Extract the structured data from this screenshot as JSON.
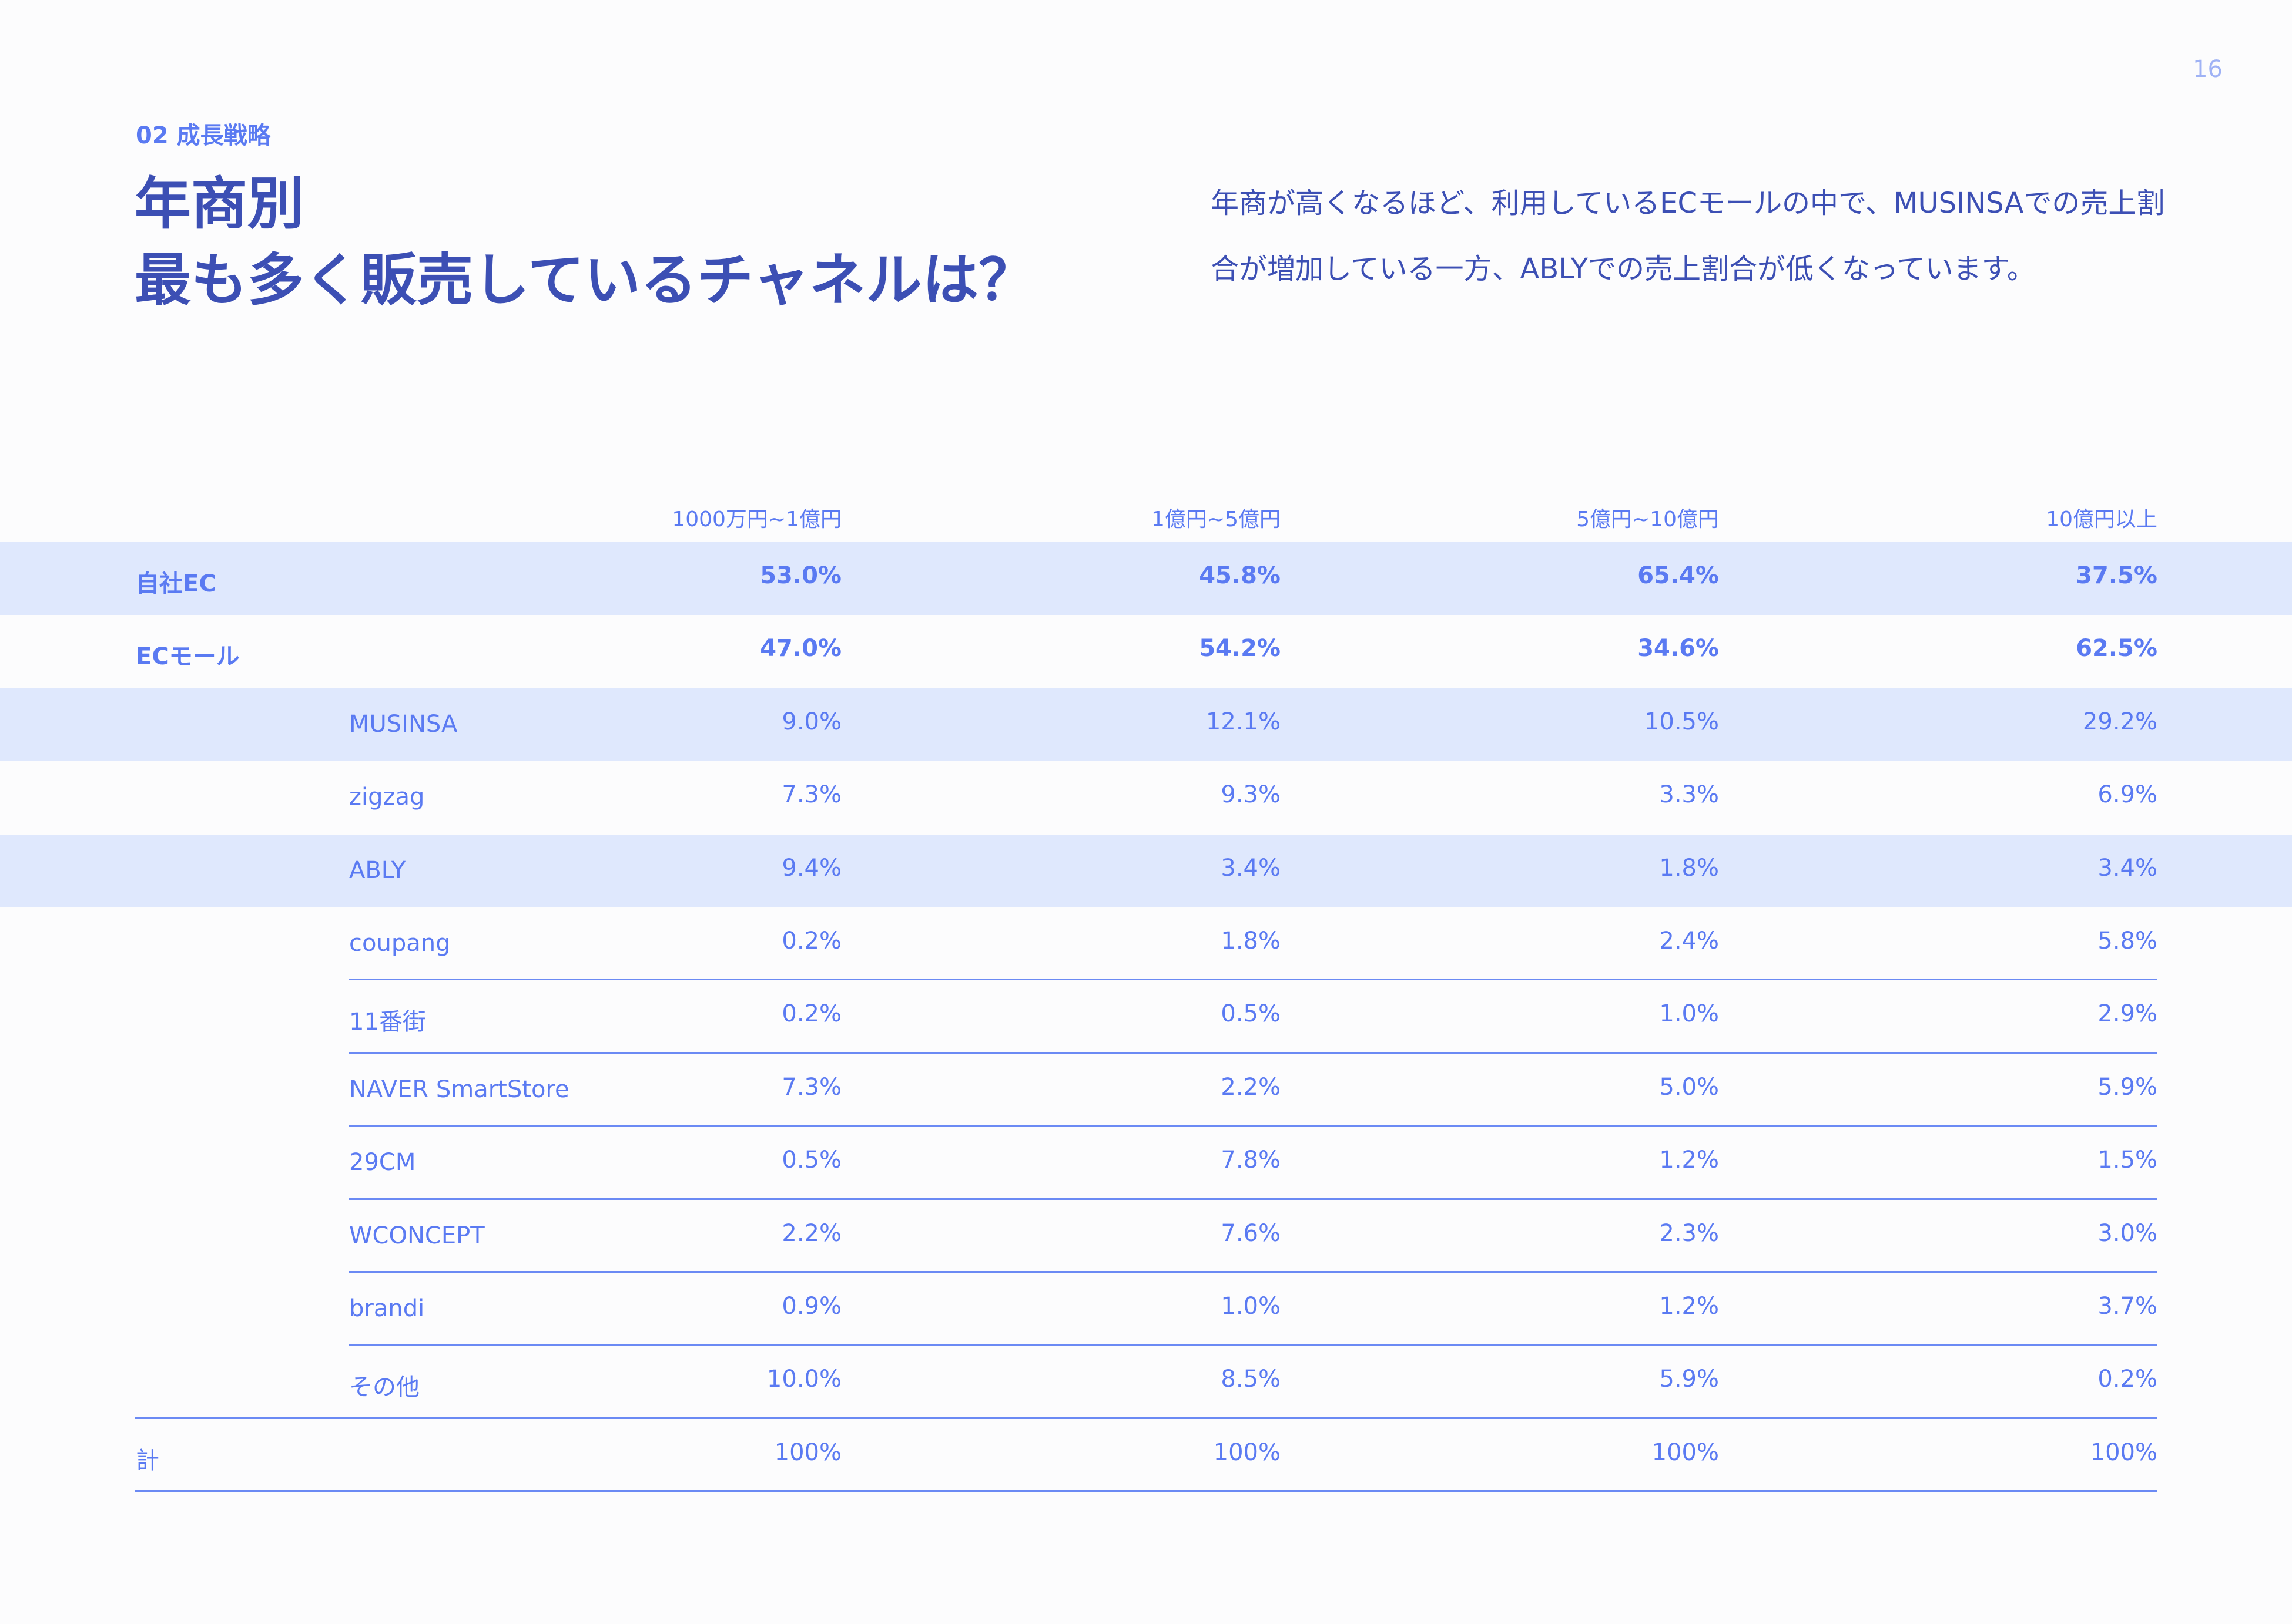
{
  "page_number": "16",
  "section": "02  成長戦略",
  "title": [
    "年商別",
    "最も多く販売しているチャネルは？"
  ],
  "lead": [
    "年商が高くなるほど、利用しているECモールの中で、MUSINSAでの売上割",
    "合が増加している一方、ABLYでの売上割合が低くなっています。"
  ],
  "table": {
    "columns": [
      "1000万円~1億円",
      "1億円~5億円",
      "5億円~10億円",
      "10億円以上"
    ],
    "rows": [
      {
        "label": "自社EC",
        "values": [
          "53.0%",
          "45.8%",
          "65.4%",
          "37.5%"
        ]
      },
      {
        "label": "ECモール",
        "values": [
          "47.0%",
          "54.2%",
          "34.6%",
          "62.5%"
        ]
      },
      {
        "label": "MUSINSA",
        "values": [
          "9.0%",
          "12.1%",
          "10.5%",
          "29.2%"
        ]
      },
      {
        "label": "zigzag",
        "values": [
          "7.3%",
          "9.3%",
          "3.3%",
          "6.9%"
        ]
      },
      {
        "label": "ABLY",
        "values": [
          "9.4%",
          "3.4%",
          "1.8%",
          "3.4%"
        ]
      },
      {
        "label": "coupang",
        "values": [
          "0.2%",
          "1.8%",
          "2.4%",
          "5.8%"
        ]
      },
      {
        "label": "11番街",
        "values": [
          "0.2%",
          "0.5%",
          "1.0%",
          "2.9%"
        ]
      },
      {
        "label": "NAVER SmartStore",
        "values": [
          "7.3%",
          "2.2%",
          "5.0%",
          "5.9%"
        ]
      },
      {
        "label": "29CM",
        "values": [
          "0.5%",
          "7.8%",
          "1.2%",
          "1.5%"
        ]
      },
      {
        "label": "WCONCEPT",
        "values": [
          "2.2%",
          "7.6%",
          "2.3%",
          "3.0%"
        ]
      },
      {
        "label": "brandi",
        "values": [
          "0.9%",
          "1.0%",
          "1.2%",
          "3.7%"
        ]
      },
      {
        "label": "その他",
        "values": [
          "10.0%",
          "8.5%",
          "5.9%",
          "0.2%"
        ]
      },
      {
        "label": "計",
        "values": [
          "100%",
          "100%",
          "100%",
          "100%"
        ]
      }
    ]
  },
  "colors": {
    "accent": "#5a7af2",
    "title": "#3c4fb4",
    "band": "#dfe8fd",
    "rule": "#6b8af4"
  }
}
